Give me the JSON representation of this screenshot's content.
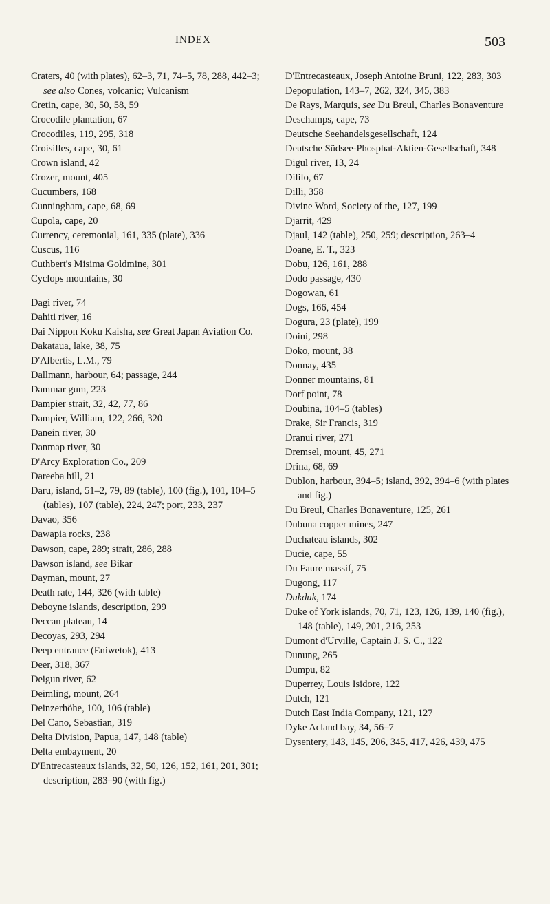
{
  "header": {
    "title": "INDEX",
    "pageNumber": "503"
  },
  "leftColumn": [
    {
      "text": "Craters, 40 (with plates), 62–3, 71, 74–5, 78, 288, 442–3; see also Cones, volcanic; Vulcanism",
      "gap": false
    },
    {
      "text": "Cretin, cape, 30, 50, 58, 59",
      "gap": false
    },
    {
      "text": "Crocodile plantation, 67",
      "gap": false
    },
    {
      "text": "Crocodiles, 119, 295, 318",
      "gap": false
    },
    {
      "text": "Croisilles, cape, 30, 61",
      "gap": false
    },
    {
      "text": "Crown island, 42",
      "gap": false
    },
    {
      "text": "Crozer, mount, 405",
      "gap": false
    },
    {
      "text": "Cucumbers, 168",
      "gap": false
    },
    {
      "text": "Cunningham, cape, 68, 69",
      "gap": false
    },
    {
      "text": "Cupola, cape, 20",
      "gap": false
    },
    {
      "text": "Currency, ceremonial, 161, 335 (plate), 336",
      "gap": false
    },
    {
      "text": "Cuscus, 116",
      "gap": false
    },
    {
      "text": "Cuthbert's Misima Goldmine, 301",
      "gap": false
    },
    {
      "text": "Cyclops mountains, 30",
      "gap": false
    },
    {
      "text": "Dagi river, 74",
      "gap": true
    },
    {
      "text": "Dahiti river, 16",
      "gap": false
    },
    {
      "text": "Dai Nippon Koku Kaisha, see Great Japan Aviation Co.",
      "gap": false
    },
    {
      "text": "Dakataua, lake, 38, 75",
      "gap": false
    },
    {
      "text": "D'Albertis, L.M., 79",
      "gap": false
    },
    {
      "text": "Dallmann, harbour, 64; passage, 244",
      "gap": false
    },
    {
      "text": "Dammar gum, 223",
      "gap": false
    },
    {
      "text": "Dampier strait, 32, 42, 77, 86",
      "gap": false
    },
    {
      "text": "Dampier, William, 122, 266, 320",
      "gap": false
    },
    {
      "text": "Danein river, 30",
      "gap": false
    },
    {
      "text": "Danmap river, 30",
      "gap": false
    },
    {
      "text": "D'Arcy Exploration Co., 209",
      "gap": false
    },
    {
      "text": "Dareeba hill, 21",
      "gap": false
    },
    {
      "text": "Daru, island, 51–2, 79, 89 (table), 100 (fig.), 101, 104–5 (tables), 107 (table), 224, 247; port, 233, 237",
      "gap": false
    },
    {
      "text": "Davao, 356",
      "gap": false
    },
    {
      "text": "Dawapia rocks, 238",
      "gap": false
    },
    {
      "text": "Dawson, cape, 289; strait, 286, 288",
      "gap": false
    },
    {
      "text": "Dawson island, see Bikar",
      "gap": false
    },
    {
      "text": "Dayman, mount, 27",
      "gap": false
    },
    {
      "text": "Death rate, 144, 326 (with table)",
      "gap": false
    },
    {
      "text": "Deboyne islands, description, 299",
      "gap": false
    },
    {
      "text": "Deccan plateau, 14",
      "gap": false
    },
    {
      "text": "Decoyas, 293, 294",
      "gap": false
    },
    {
      "text": "Deep entrance (Eniwetok), 413",
      "gap": false
    },
    {
      "text": "Deer, 318, 367",
      "gap": false
    },
    {
      "text": "Deigun river, 62",
      "gap": false
    },
    {
      "text": "Deimling, mount, 264",
      "gap": false
    },
    {
      "text": "Deinzerhöhe, 100, 106 (table)",
      "gap": false
    },
    {
      "text": "Del Cano, Sebastian, 319",
      "gap": false
    },
    {
      "text": "Delta Division, Papua, 147, 148 (table)",
      "gap": false
    },
    {
      "text": "Delta embayment, 20",
      "gap": false
    },
    {
      "text": "D'Entrecasteaux islands, 32, 50, 126, 152, 161, 201, 301; description, 283–90 (with fig.)",
      "gap": false
    }
  ],
  "rightColumn": [
    {
      "text": "D'Entrecasteaux, Joseph Antoine Bruni, 122, 283, 303",
      "gap": false
    },
    {
      "text": "Depopulation, 143–7, 262, 324, 345, 383",
      "gap": false
    },
    {
      "text": "De Rays, Marquis, see Du Breul, Charles Bonaventure",
      "gap": false
    },
    {
      "text": "Deschamps, cape, 73",
      "gap": false
    },
    {
      "text": "Deutsche Seehandelsgesellschaft, 124",
      "gap": false
    },
    {
      "text": "Deutsche Südsee-Phosphat-Aktien-Gesellschaft, 348",
      "gap": false
    },
    {
      "text": "Digul river, 13, 24",
      "gap": false
    },
    {
      "text": "Dililo, 67",
      "gap": false
    },
    {
      "text": "Dilli, 358",
      "gap": false
    },
    {
      "text": "Divine Word, Society of the, 127, 199",
      "gap": false
    },
    {
      "text": "Djarrit, 429",
      "gap": false
    },
    {
      "text": "Djaul, 142 (table), 250, 259; description, 263–4",
      "gap": false
    },
    {
      "text": "Doane, E. T., 323",
      "gap": false
    },
    {
      "text": "Dobu, 126, 161, 288",
      "gap": false
    },
    {
      "text": "Dodo passage, 430",
      "gap": false
    },
    {
      "text": "Dogowan, 61",
      "gap": false
    },
    {
      "text": "Dogs, 166, 454",
      "gap": false
    },
    {
      "text": "Dogura, 23 (plate), 199",
      "gap": false
    },
    {
      "text": "Doini, 298",
      "gap": false
    },
    {
      "text": "Doko, mount, 38",
      "gap": false
    },
    {
      "text": "Donnay, 435",
      "gap": false
    },
    {
      "text": "Donner mountains, 81",
      "gap": false
    },
    {
      "text": "Dorf point, 78",
      "gap": false
    },
    {
      "text": "Doubina, 104–5 (tables)",
      "gap": false
    },
    {
      "text": "Drake, Sir Francis, 319",
      "gap": false
    },
    {
      "text": "Dranui river, 271",
      "gap": false
    },
    {
      "text": "Dremsel, mount, 45, 271",
      "gap": false
    },
    {
      "text": "Drina, 68, 69",
      "gap": false
    },
    {
      "text": "Dublon, harbour, 394–5; island, 392, 394–6 (with plates and fig.)",
      "gap": false
    },
    {
      "text": "Du Breul, Charles Bonaventure, 125, 261",
      "gap": false
    },
    {
      "text": "Dubuna copper mines, 247",
      "gap": false
    },
    {
      "text": "Duchateau islands, 302",
      "gap": false
    },
    {
      "text": "Ducie, cape, 55",
      "gap": false
    },
    {
      "text": "Du Faure massif, 75",
      "gap": false
    },
    {
      "text": "Dugong, 117",
      "gap": false
    },
    {
      "text": "Dukduk, 174",
      "gap": false,
      "italic": true
    },
    {
      "text": "Duke of York islands, 70, 71, 123, 126, 139, 140 (fig.), 148 (table), 149, 201, 216, 253",
      "gap": false
    },
    {
      "text": "Dumont d'Urville, Captain J. S. C., 122",
      "gap": false
    },
    {
      "text": "Dunung, 265",
      "gap": false
    },
    {
      "text": "Dumpu, 82",
      "gap": false
    },
    {
      "text": "Duperrey, Louis Isidore, 122",
      "gap": false
    },
    {
      "text": "Dutch, 121",
      "gap": false
    },
    {
      "text": "Dutch East India Company, 121, 127",
      "gap": false
    },
    {
      "text": "Dyke Acland bay, 34, 56–7",
      "gap": false
    },
    {
      "text": "Dysentery, 143, 145, 206, 345, 417, 426, 439, 475",
      "gap": false
    }
  ]
}
